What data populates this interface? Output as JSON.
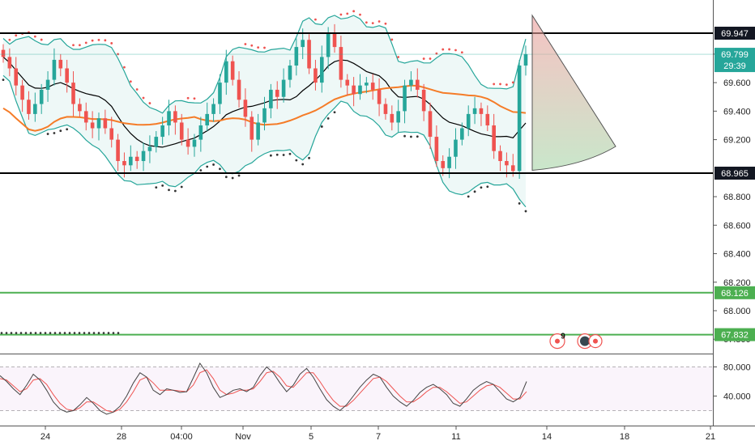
{
  "chart_data": [
    {
      "type": "candlestick",
      "x_labels": [
        "24",
        "28",
        "04:00",
        "Nov",
        "5",
        "7",
        "11",
        "14",
        "18",
        "21"
      ],
      "y_ticks": [
        "69.800",
        "69.600",
        "69.400",
        "69.200",
        "68.800",
        "68.600",
        "68.400",
        "68.200",
        "68.000",
        "67.800"
      ],
      "ylim": [
        67.75,
        70.05
      ],
      "price_labels": [
        {
          "value": 69.947,
          "label": "69.947",
          "color": "#131722",
          "text_color": "#ffffff"
        },
        {
          "value": 69.799,
          "label": "69.799",
          "color": "#26a69a",
          "text_color": "#ffffff",
          "countdown": "29:39"
        },
        {
          "value": 68.965,
          "label": "68.965",
          "color": "#131722",
          "text_color": "#ffffff"
        },
        {
          "value": 68.126,
          "label": "68.126",
          "color": "#4caf50",
          "text_color": "#ffffff"
        },
        {
          "value": 67.832,
          "label": "67.832",
          "color": "#4caf50",
          "text_color": "#ffffff"
        }
      ],
      "horizontal_lines": [
        {
          "value": 69.947,
          "color": "#000000"
        },
        {
          "value": 68.965,
          "color": "#000000"
        },
        {
          "value": 68.126,
          "color": "#4caf50"
        },
        {
          "value": 67.832,
          "color": "#4caf50"
        }
      ],
      "close_series": [
        69.78,
        69.7,
        69.58,
        69.48,
        69.38,
        69.45,
        69.55,
        69.62,
        69.76,
        69.7,
        69.6,
        69.45,
        69.4,
        69.32,
        69.28,
        69.35,
        69.28,
        69.2,
        69.05,
        69.02,
        69.08,
        69.05,
        69.12,
        69.15,
        69.22,
        69.3,
        69.4,
        69.32,
        69.2,
        69.15,
        69.2,
        69.3,
        69.38,
        69.45,
        69.6,
        69.75,
        69.62,
        69.48,
        69.36,
        69.2,
        69.32,
        69.42,
        69.55,
        69.5,
        69.62,
        69.72,
        69.85,
        69.9,
        69.7,
        69.6,
        69.78,
        69.95,
        69.85,
        69.62,
        69.58,
        69.52,
        69.58,
        69.6,
        69.55,
        69.45,
        69.38,
        69.32,
        69.4,
        69.58,
        69.62,
        69.55,
        69.4,
        69.22,
        69.05,
        69.0,
        69.08,
        69.2,
        69.28,
        69.38,
        69.42,
        69.38,
        69.3,
        69.12,
        69.05,
        69.02,
        68.98,
        69.72,
        69.8
      ],
      "indicator_colors": {
        "bull": "#26a69a",
        "bear": "#ef5350",
        "bollinger": "#26a69a",
        "mid_line": "#000000",
        "moving_average": "#f57c28",
        "stops_above": "#ef5350",
        "stops_below": "#333333"
      },
      "event_badge": "9"
    },
    {
      "type": "line",
      "y_ticks": [
        "80.000",
        "40.000"
      ],
      "ylim": [
        15,
        90
      ],
      "reference_lines": [
        80,
        20
      ],
      "k_series": [
        68,
        60,
        50,
        42,
        55,
        70,
        62,
        48,
        32,
        22,
        18,
        20,
        28,
        38,
        30,
        20,
        15,
        18,
        26,
        40,
        58,
        72,
        66,
        48,
        42,
        50,
        48,
        45,
        46,
        65,
        85,
        72,
        52,
        38,
        42,
        48,
        50,
        46,
        52,
        68,
        80,
        72,
        58,
        46,
        55,
        70,
        78,
        66,
        50,
        35,
        26,
        20,
        28,
        40,
        52,
        62,
        70,
        66,
        52,
        40,
        32,
        26,
        34,
        45,
        52,
        56,
        50,
        42,
        30,
        26,
        36,
        48,
        55,
        60,
        56,
        46,
        36,
        32,
        38,
        60
      ],
      "d_series": [
        64,
        62,
        54,
        46,
        50,
        62,
        64,
        56,
        42,
        30,
        22,
        20,
        24,
        32,
        32,
        26,
        20,
        18,
        22,
        32,
        46,
        62,
        66,
        58,
        48,
        48,
        48,
        47,
        46,
        55,
        72,
        76,
        64,
        48,
        42,
        44,
        48,
        48,
        50,
        60,
        72,
        74,
        66,
        54,
        52,
        62,
        72,
        72,
        60,
        46,
        34,
        26,
        26,
        34,
        44,
        54,
        64,
        66,
        60,
        50,
        40,
        32,
        32,
        38,
        46,
        52,
        52,
        46,
        38,
        30,
        32,
        40,
        48,
        54,
        56,
        52,
        44,
        36,
        36,
        46
      ]
    }
  ]
}
